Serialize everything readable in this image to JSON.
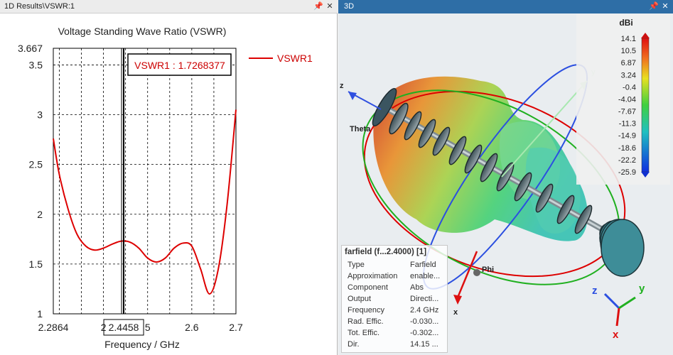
{
  "left_window": {
    "title": "1D Results\\VSWR:1",
    "pin_icon": "pin-icon",
    "close_icon": "close-icon"
  },
  "right_window": {
    "title": "3D",
    "pin_icon": "pin-icon",
    "close_icon": "close-icon"
  },
  "chart_data": {
    "type": "line",
    "title": "Voltage Standing Wave Ratio (VSWR)",
    "xlabel": "Frequency / GHz",
    "ylabel": "",
    "xlim": [
      2.2864,
      2.7
    ],
    "ylim": [
      1,
      3.667
    ],
    "x_tick_labels": [
      "2.2864",
      "2",
      "2.4458",
      "5",
      "2.6",
      "2.7"
    ],
    "y_tick_labels": [
      "3.667",
      "3.5",
      "3",
      "2.5",
      "2",
      "1.5",
      "1"
    ],
    "series": [
      {
        "name": "VSWR1",
        "color": "#dd0000",
        "x": [
          2.2864,
          2.3,
          2.32,
          2.34,
          2.36,
          2.38,
          2.4,
          2.42,
          2.44,
          2.46,
          2.48,
          2.5,
          2.52,
          2.54,
          2.56,
          2.58,
          2.6,
          2.62,
          2.64,
          2.66,
          2.68,
          2.7
        ],
        "values": [
          2.76,
          2.4,
          2.05,
          1.8,
          1.68,
          1.64,
          1.66,
          1.7,
          1.73,
          1.72,
          1.66,
          1.56,
          1.52,
          1.56,
          1.66,
          1.71,
          1.68,
          1.45,
          1.2,
          1.45,
          2.1,
          3.05
        ]
      }
    ],
    "marker": {
      "label": "VSWR1 : 1.7268377",
      "x": 2.4458
    }
  },
  "legend": {
    "entries": [
      "VSWR1"
    ]
  },
  "scale": {
    "unit": "dBi",
    "ticks": [
      "14.1",
      "10.5",
      "6.87",
      "3.24",
      "-0.4",
      "-4.04",
      "-7.67",
      "-11.3",
      "-14.9",
      "-18.6",
      "-22.2",
      "-25.9"
    ]
  },
  "axes3d": {
    "labels": {
      "z": "z",
      "y": "y",
      "x": "x",
      "theta": "Theta",
      "phi": "Phi"
    }
  },
  "info": {
    "title": "farfield (f...2.4000) [1]",
    "rows": [
      {
        "key": "Type",
        "value": "Farfield"
      },
      {
        "key": "Approximation",
        "value": "enable..."
      },
      {
        "key": "Component",
        "value": "Abs"
      },
      {
        "key": "Output",
        "value": "Directi..."
      },
      {
        "key": "Frequency",
        "value": "2.4 GHz"
      },
      {
        "key": "Rad. Effic.",
        "value": "-0.030..."
      },
      {
        "key": "Tot. Effic.",
        "value": "-0.302..."
      },
      {
        "key": "Dir.",
        "value": "14.15 ..."
      }
    ]
  }
}
